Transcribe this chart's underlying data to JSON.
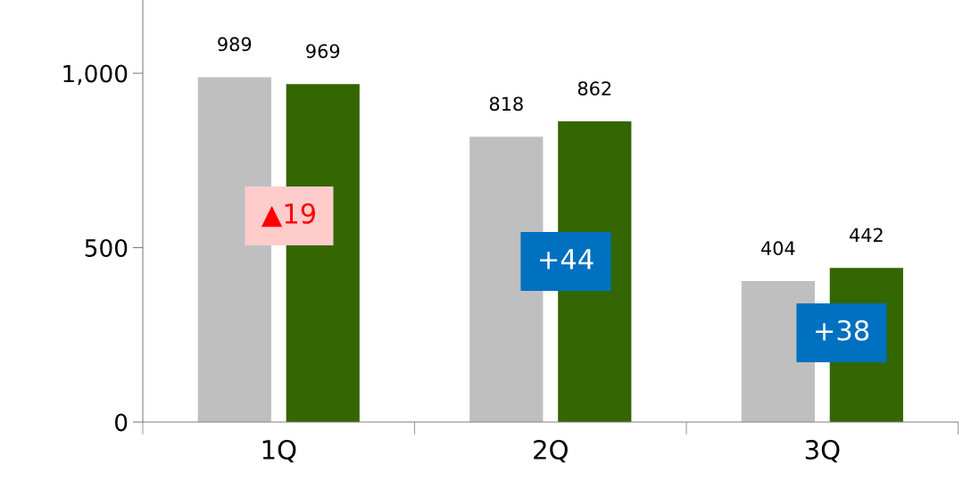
{
  "chart_data": {
    "type": "bar",
    "categories": [
      "1Q",
      "2Q",
      "3Q"
    ],
    "series": [
      {
        "color": "#bfbfbf",
        "values": [
          989,
          818,
          404
        ]
      },
      {
        "color": "#336600",
        "values": [
          969,
          862,
          442
        ]
      }
    ],
    "ylim": [
      0,
      1210
    ],
    "yticks": [
      0,
      500,
      {
        "value": 1000,
        "label": "1,000"
      }
    ],
    "data_labels": true,
    "grid": false,
    "legend": false,
    "annotations": [
      "▲19",
      "+44",
      "+38"
    ]
  }
}
